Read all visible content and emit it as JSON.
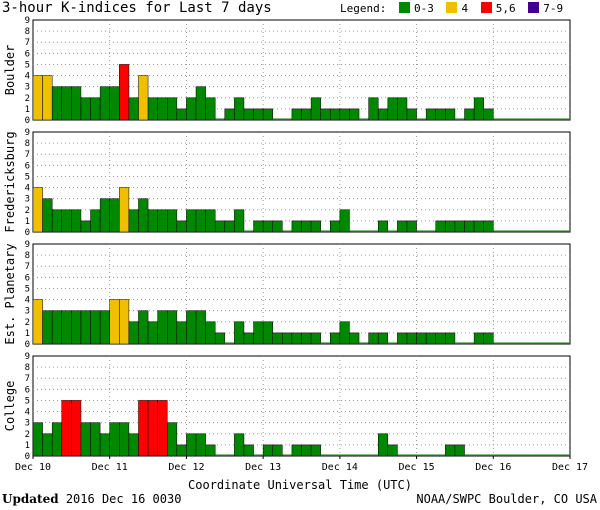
{
  "title": "3-hour K-indices for Last 7 days",
  "legend": {
    "label": "Legend:",
    "items": [
      {
        "text": "0-3",
        "color": "#008800"
      },
      {
        "text": "4",
        "color": "#f0c000"
      },
      {
        "text": "5,6",
        "color": "#ff0000"
      },
      {
        "text": "7-9",
        "color": "#400090"
      }
    ]
  },
  "footer": {
    "updated_label": "Updated",
    "updated_value": "2016 Dec 16 0030",
    "source": "NOAA/SWPC Boulder, CO USA"
  },
  "chart_data": {
    "type": "bar",
    "xlabel": "Coordinate Universal Time (UTC)",
    "x_ticks": [
      "Dec 10",
      "Dec 11",
      "Dec 12",
      "Dec 13",
      "Dec 14",
      "Dec 15",
      "Dec 16",
      "Dec 17"
    ],
    "y_ticks": [
      "0",
      "1",
      "2",
      "3",
      "4",
      "5",
      "6",
      "7",
      "8",
      "9"
    ],
    "ylim": [
      0,
      9
    ],
    "interval_hours": 3,
    "grid": true,
    "color_rule": {
      "0-3": "#008800",
      "4": "#f0c000",
      "5-6": "#ff0000",
      "7-9": "#400090"
    },
    "panels": [
      {
        "station": "Boulder",
        "values": [
          4,
          4,
          3,
          3,
          3,
          2,
          2,
          3,
          3,
          5,
          2,
          4,
          2,
          2,
          2,
          1,
          2,
          3,
          2,
          0,
          1,
          2,
          1,
          1,
          1,
          0,
          0,
          1,
          1,
          2,
          1,
          1,
          1,
          1,
          0,
          2,
          1,
          2,
          2,
          1,
          0,
          1,
          1,
          1,
          0,
          1,
          2,
          1
        ]
      },
      {
        "station": "Fredericksburg",
        "values": [
          4,
          3,
          2,
          2,
          2,
          1,
          2,
          3,
          3,
          4,
          2,
          3,
          2,
          2,
          2,
          1,
          2,
          2,
          2,
          1,
          1,
          2,
          0,
          1,
          1,
          1,
          0,
          1,
          1,
          1,
          0,
          1,
          2,
          0,
          0,
          0,
          1,
          0,
          1,
          1,
          0,
          0,
          1,
          1,
          1,
          1,
          1,
          1
        ]
      },
      {
        "station": "Est. Planetary",
        "values": [
          4,
          3,
          3,
          3,
          3,
          3,
          3,
          3,
          4,
          4,
          2,
          3,
          2,
          3,
          3,
          2,
          3,
          3,
          2,
          1,
          0,
          2,
          1,
          2,
          2,
          1,
          1,
          1,
          1,
          1,
          0,
          1,
          2,
          1,
          0,
          1,
          1,
          0,
          1,
          1,
          1,
          1,
          1,
          1,
          0,
          0,
          1,
          1
        ]
      },
      {
        "station": "College",
        "values": [
          3,
          2,
          3,
          5,
          5,
          3,
          3,
          2,
          3,
          3,
          2,
          5,
          5,
          5,
          3,
          1,
          2,
          2,
          1,
          0,
          0,
          2,
          1,
          0,
          1,
          1,
          0,
          1,
          1,
          1,
          0,
          0,
          0,
          0,
          0,
          0,
          2,
          1,
          0,
          0,
          0,
          0,
          0,
          1,
          1,
          0,
          0,
          0
        ]
      }
    ]
  }
}
